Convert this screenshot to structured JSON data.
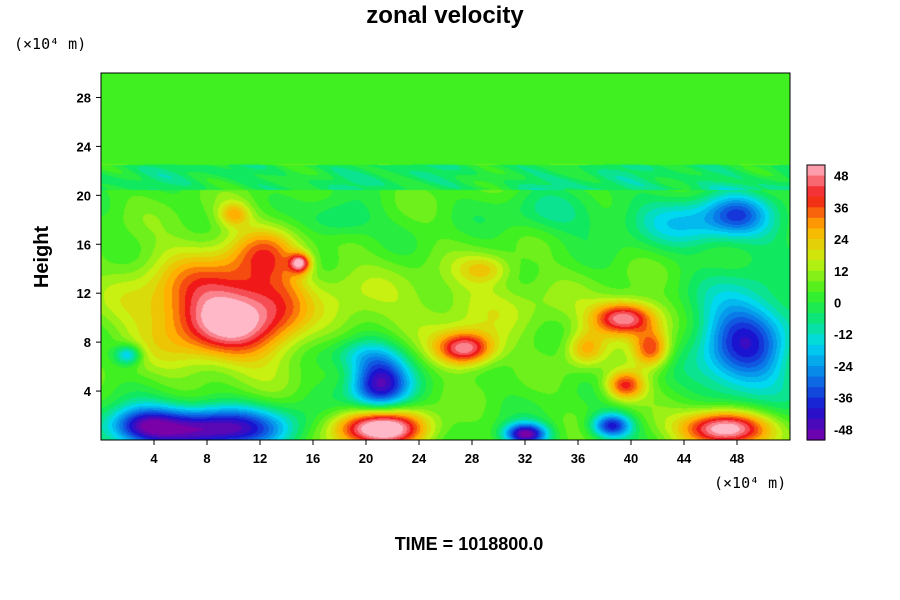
{
  "chart_data": {
    "type": "heatmap",
    "title": "zonal velocity",
    "ylabel": "Height",
    "xlabel": "",
    "x_unit": "(×10⁴ m)",
    "y_unit": "(×10⁴ m)",
    "xlim": [
      0,
      52
    ],
    "ylim": [
      0,
      30
    ],
    "x_ticks": [
      4,
      8,
      12,
      16,
      20,
      24,
      28,
      32,
      36,
      40,
      44,
      48
    ],
    "y_ticks": [
      4,
      8,
      12,
      16,
      20,
      24,
      28
    ],
    "colorbar": {
      "ticks": [
        48,
        36,
        24,
        12,
        0,
        -12,
        -24,
        -36,
        -48
      ],
      "min": -52,
      "max": 52,
      "stops": [
        {
          "value": -52,
          "color": "#7a00a8"
        },
        {
          "value": -40,
          "color": "#1a14d0"
        },
        {
          "value": -28,
          "color": "#0a7ae8"
        },
        {
          "value": -16,
          "color": "#00d8f0"
        },
        {
          "value": -4,
          "color": "#10e860"
        },
        {
          "value": 4,
          "color": "#40f020"
        },
        {
          "value": 16,
          "color": "#c8f010"
        },
        {
          "value": 28,
          "color": "#ffb000"
        },
        {
          "value": 40,
          "color": "#f01818"
        },
        {
          "value": 52,
          "color": "#ffb8c8"
        }
      ]
    },
    "background_value": 4,
    "features": [
      {
        "kind": "band",
        "y0": 20.5,
        "y1": 22.5,
        "value": -3
      },
      {
        "x": 10,
        "y": 11,
        "rx": 7,
        "ry": 4.5,
        "amp": 42
      },
      {
        "x": 9.5,
        "y": 9.5,
        "rx": 4,
        "ry": 2.5,
        "amp": 14
      },
      {
        "x": 12.5,
        "y": 15.5,
        "rx": 2.5,
        "ry": 2.2,
        "amp": 16
      },
      {
        "x": 15,
        "y": 14.5,
        "rx": 0.8,
        "ry": 0.8,
        "amp": 38
      },
      {
        "x": 10,
        "y": 18.5,
        "rx": 1.2,
        "ry": 1,
        "amp": 20
      },
      {
        "x": 8,
        "y": 1,
        "rx": 6,
        "ry": 1.8,
        "amp": -56
      },
      {
        "x": 3,
        "y": 1.2,
        "rx": 2.5,
        "ry": 1.5,
        "amp": -28
      },
      {
        "x": 21,
        "y": 4.5,
        "rx": 2.2,
        "ry": 2.2,
        "amp": -50
      },
      {
        "x": 19.5,
        "y": 7,
        "rx": 3,
        "ry": 1.5,
        "amp": -20
      },
      {
        "x": 21,
        "y": 1,
        "rx": 3.5,
        "ry": 1.6,
        "amp": 58
      },
      {
        "x": 27.5,
        "y": 7.5,
        "rx": 2.2,
        "ry": 1.4,
        "amp": 46
      },
      {
        "x": 32,
        "y": 0.5,
        "rx": 1.6,
        "ry": 0.9,
        "amp": -56
      },
      {
        "x": 39.5,
        "y": 10,
        "rx": 2.4,
        "ry": 1.4,
        "amp": 48
      },
      {
        "x": 41.5,
        "y": 7.5,
        "rx": 1.4,
        "ry": 1.6,
        "amp": 34
      },
      {
        "x": 39.5,
        "y": 4.5,
        "rx": 1.5,
        "ry": 1.2,
        "amp": 36
      },
      {
        "x": 36.5,
        "y": 7.5,
        "rx": 1.5,
        "ry": 1.5,
        "amp": 22
      },
      {
        "x": 38.5,
        "y": 1.2,
        "rx": 1.5,
        "ry": 1,
        "amp": -44
      },
      {
        "x": 47,
        "y": 1,
        "rx": 3.2,
        "ry": 1.5,
        "amp": 58
      },
      {
        "x": 48.5,
        "y": 8,
        "rx": 3.5,
        "ry": 4.5,
        "amp": -42
      },
      {
        "x": 46,
        "y": 18,
        "rx": 6,
        "ry": 2.2,
        "amp": -24
      },
      {
        "x": 48,
        "y": 18.5,
        "rx": 2,
        "ry": 1.5,
        "amp": -16
      },
      {
        "x": 28,
        "y": 11,
        "rx": 8,
        "ry": 3,
        "amp": 10
      },
      {
        "x": 16,
        "y": 11,
        "rx": 2,
        "ry": 5,
        "amp": -8
      },
      {
        "x": 2,
        "y": 7,
        "rx": 1,
        "ry": 0.8,
        "amp": -26
      },
      {
        "x": 18,
        "y": 18,
        "rx": 2.5,
        "ry": 1.5,
        "amp": -14
      },
      {
        "x": 34,
        "y": 18.5,
        "rx": 4,
        "ry": 1.8,
        "amp": -10
      },
      {
        "x": 29,
        "y": 14,
        "rx": 2,
        "ry": 1.2,
        "amp": 16
      }
    ]
  },
  "footer": {
    "time_label": "TIME = 1018800.0"
  }
}
